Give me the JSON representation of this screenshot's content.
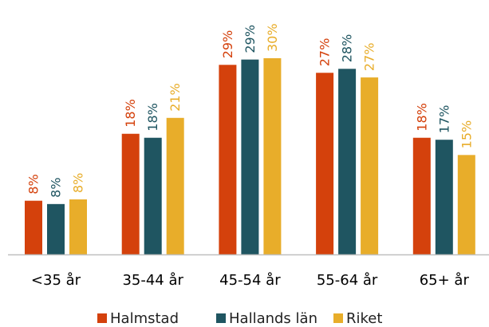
{
  "chart_data": {
    "type": "bar",
    "categories": [
      "<35 år",
      "35-44 år",
      "45-54 år",
      "55-64 år",
      "65+ år"
    ],
    "series": [
      {
        "name": "Halmstad",
        "color": "#d4410c",
        "values": [
          8.1,
          18.2,
          28.6,
          27.4,
          17.6
        ],
        "value_labels": [
          "8%",
          "18%",
          "29%",
          "27%",
          "18%"
        ]
      },
      {
        "name": "Hallands län",
        "color": "#1f5561",
        "values": [
          7.6,
          17.6,
          29.4,
          28.0,
          17.3
        ],
        "value_labels": [
          "8%",
          "18%",
          "29%",
          "28%",
          "17%"
        ]
      },
      {
        "name": "Riket",
        "color": "#e8ad2a",
        "values": [
          8.3,
          20.6,
          29.6,
          26.7,
          15.0
        ],
        "value_labels": [
          "8%",
          "21%",
          "30%",
          "27%",
          "15%"
        ]
      }
    ]
  }
}
